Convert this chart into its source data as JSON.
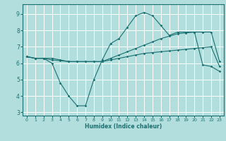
{
  "xlabel": "Humidex (Indice chaleur)",
  "background_color": "#b2dede",
  "grid_color": "#ffffff",
  "line_color": "#1a7070",
  "xlim": [
    -0.5,
    23.5
  ],
  "ylim": [
    2.8,
    9.6
  ],
  "yticks": [
    3,
    4,
    5,
    6,
    7,
    8,
    9
  ],
  "xticks": [
    0,
    1,
    2,
    3,
    4,
    5,
    6,
    7,
    8,
    9,
    10,
    11,
    12,
    13,
    14,
    15,
    16,
    17,
    18,
    19,
    20,
    21,
    22,
    23
  ],
  "line1_x": [
    0,
    1,
    2,
    3,
    4,
    5,
    6,
    7,
    8,
    9,
    10,
    11,
    12,
    13,
    14,
    15,
    16,
    17,
    18,
    19,
    20,
    21,
    22,
    23
  ],
  "line1_y": [
    6.4,
    6.3,
    6.3,
    6.0,
    4.8,
    4.0,
    3.4,
    3.4,
    5.0,
    6.2,
    7.2,
    7.5,
    8.2,
    8.9,
    9.1,
    8.9,
    8.3,
    7.7,
    7.9,
    7.9,
    7.9,
    5.9,
    5.8,
    5.5
  ],
  "line2_x": [
    0,
    1,
    2,
    3,
    4,
    5,
    6,
    7,
    8,
    9,
    10,
    11,
    12,
    13,
    14,
    15,
    16,
    17,
    18,
    19,
    20,
    21,
    22,
    23
  ],
  "line2_y": [
    6.4,
    6.3,
    6.3,
    6.3,
    6.2,
    6.1,
    6.1,
    6.1,
    6.1,
    6.1,
    6.2,
    6.3,
    6.4,
    6.5,
    6.6,
    6.65,
    6.7,
    6.75,
    6.8,
    6.85,
    6.9,
    6.95,
    7.0,
    5.8
  ],
  "line3_x": [
    0,
    1,
    2,
    3,
    4,
    5,
    6,
    7,
    8,
    9,
    10,
    11,
    12,
    13,
    14,
    15,
    16,
    17,
    18,
    19,
    20,
    21,
    22,
    23
  ],
  "line3_y": [
    6.4,
    6.3,
    6.3,
    6.2,
    6.15,
    6.1,
    6.1,
    6.1,
    6.1,
    6.1,
    6.3,
    6.5,
    6.7,
    6.9,
    7.1,
    7.3,
    7.5,
    7.65,
    7.8,
    7.85,
    7.9,
    7.9,
    7.9,
    6.1
  ]
}
